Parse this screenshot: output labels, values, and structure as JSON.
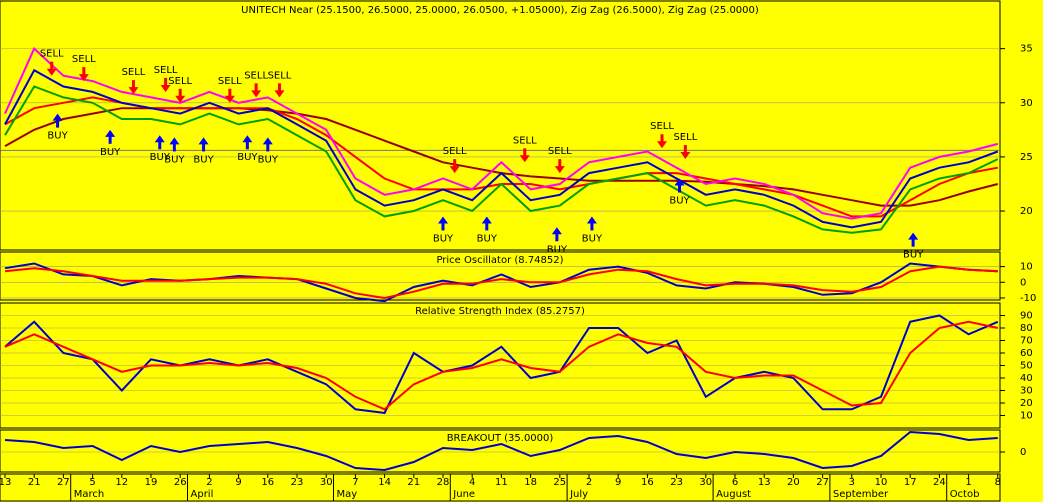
{
  "chart_data": [
    {
      "type": "line",
      "title": "UNITECH Near (25.1500, 26.5000, 25.0000, 26.0500, +1.05000), Zig Zag (26.5000), Zig Zag (25.0000)",
      "categories": [
        "13",
        "21",
        "27",
        "5",
        "12",
        "19",
        "26",
        "2",
        "9",
        "16",
        "23",
        "30",
        "7",
        "14",
        "21",
        "28",
        "4",
        "11",
        "18",
        "25",
        "2",
        "9",
        "16",
        "23",
        "30",
        "6",
        "13",
        "20",
        "27",
        "3",
        "10",
        "17",
        "24",
        "1",
        "8"
      ],
      "months": [
        {
          "value": 3,
          "label": "March"
        },
        {
          "value": 7,
          "label": "April"
        },
        {
          "value": 12,
          "label": "May"
        },
        {
          "value": 16,
          "label": "June"
        },
        {
          "value": 20,
          "label": "July"
        },
        {
          "value": 25,
          "label": "August"
        },
        {
          "value": 29,
          "label": "September"
        },
        {
          "value": 33,
          "label": "Octob"
        }
      ],
      "ylim": [
        16.4,
        39.4
      ],
      "yticks": [
        20,
        25,
        30,
        35
      ],
      "hline": 25.6,
      "series": [
        {
          "color": "#990000",
          "values": [
            26,
            27.5,
            28.5,
            29,
            29.5,
            29.5,
            29.5,
            29.5,
            29.5,
            29.3,
            29,
            28.5,
            27.5,
            26.5,
            25.5,
            24.5,
            24,
            23.5,
            23.2,
            23,
            22.8,
            22.8,
            22.8,
            22.8,
            22.7,
            22.5,
            22.3,
            22,
            21.5,
            21,
            20.5,
            20.5,
            21,
            21.8,
            22.5
          ]
        },
        {
          "color": "#ff0000",
          "values": [
            28,
            29.5,
            30,
            30.5,
            30,
            29.5,
            29.5,
            29.5,
            29.5,
            29.5,
            28.5,
            27,
            25,
            23,
            22,
            22,
            22,
            22.5,
            22.5,
            22,
            22.5,
            23,
            23.5,
            23.5,
            23,
            22.5,
            22,
            21.5,
            20.5,
            19.5,
            19.5,
            21,
            22.5,
            23.5,
            24
          ]
        },
        {
          "color": "#00a000",
          "values": [
            27,
            31.5,
            30.5,
            30,
            28.5,
            28.5,
            28,
            29,
            28,
            28.5,
            27,
            25.5,
            21,
            19.5,
            20,
            21,
            20,
            22.5,
            20,
            20.5,
            22.5,
            23,
            23.5,
            22,
            20.5,
            21,
            20.5,
            19.5,
            18.3,
            18,
            18.3,
            22,
            23,
            23.5,
            24.8
          ]
        },
        {
          "color": "#ff00ff",
          "values": [
            29,
            35,
            32.5,
            32,
            31,
            30.5,
            30,
            31,
            30,
            30.5,
            29,
            27.5,
            23,
            21.5,
            22,
            23,
            22,
            24.5,
            22,
            22.5,
            24.5,
            25,
            25.5,
            24,
            22.5,
            23,
            22.5,
            21.5,
            19.8,
            19.3,
            19.8,
            24,
            25,
            25.5,
            26.2
          ]
        },
        {
          "color": "#0000cc",
          "values": [
            28,
            33,
            31.5,
            31,
            30,
            29.5,
            29,
            30,
            29,
            29.5,
            28,
            26.5,
            22,
            20.5,
            21,
            22,
            21,
            23.5,
            21,
            21.5,
            23.5,
            24,
            24.5,
            23,
            21.5,
            22,
            21.5,
            20.5,
            19,
            18.5,
            19,
            23,
            24,
            24.5,
            25.5
          ]
        }
      ],
      "signals": [
        {
          "label": "SELL",
          "x": 1.6,
          "value": 32.5
        },
        {
          "label": "SELL",
          "x": 2.7,
          "value": 32
        },
        {
          "label": "SELL",
          "x": 4.4,
          "value": 30.8
        },
        {
          "label": "SELL",
          "x": 5.5,
          "value": 31
        },
        {
          "label": "SELL",
          "x": 6.0,
          "value": 30
        },
        {
          "label": "SELL",
          "x": 7.7,
          "value": 30
        },
        {
          "label": "SELL",
          "x": 8.6,
          "value": 30.5
        },
        {
          "label": "SELL",
          "x": 9.4,
          "value": 30.5
        },
        {
          "label": "SELL",
          "x": 15.4,
          "value": 23.5
        },
        {
          "label": "SELL",
          "x": 17.8,
          "value": 24.5
        },
        {
          "label": "SELL",
          "x": 19.0,
          "value": 23.5
        },
        {
          "label": "SELL",
          "x": 22.5,
          "value": 25.8
        },
        {
          "label": "SELL",
          "x": 23.3,
          "value": 24.8
        },
        {
          "label": "BUY",
          "x": 1.8,
          "value": 29
        },
        {
          "label": "BUY",
          "x": 3.6,
          "value": 27.5
        },
        {
          "label": "BUY",
          "x": 5.3,
          "value": 27
        },
        {
          "label": "BUY",
          "x": 5.8,
          "value": 26.8
        },
        {
          "label": "BUY",
          "x": 6.8,
          "value": 26.8
        },
        {
          "label": "BUY",
          "x": 8.3,
          "value": 27
        },
        {
          "label": "BUY",
          "x": 9.0,
          "value": 26.8
        },
        {
          "label": "BUY",
          "x": 15.0,
          "value": 19.5
        },
        {
          "label": "BUY",
          "x": 16.5,
          "value": 19.5
        },
        {
          "label": "BUY",
          "x": 18.9,
          "value": 18.5
        },
        {
          "label": "BUY",
          "x": 20.1,
          "value": 19.5
        },
        {
          "label": "BUY",
          "x": 23.1,
          "value": 23
        },
        {
          "label": "BUY",
          "x": 31.1,
          "value": 18
        }
      ]
    },
    {
      "type": "line",
      "title": "Price Oscillator (8.74852)",
      "ylim": [
        -11.3,
        19.3
      ],
      "yticks": [
        10,
        0,
        -10
      ],
      "series": [
        {
          "color": "#0000cc",
          "values": [
            9,
            12,
            5,
            4,
            -2,
            2,
            1,
            2,
            4,
            3,
            2,
            -4,
            -10,
            -12,
            -3,
            1,
            -2,
            5,
            -3,
            0,
            8,
            10,
            6,
            -2,
            -4,
            0,
            -1,
            -3,
            -8,
            -7,
            0,
            12,
            10,
            8,
            7
          ]
        },
        {
          "color": "#ff0000",
          "values": [
            7,
            9,
            7,
            4,
            1,
            1,
            1,
            2,
            3,
            3,
            2,
            -1,
            -7,
            -10,
            -6,
            -1,
            -1,
            2,
            0,
            0,
            5,
            8,
            7,
            2,
            -2,
            -1,
            -1,
            -2,
            -5,
            -6,
            -3,
            7,
            10,
            8,
            7
          ]
        }
      ]
    },
    {
      "type": "line",
      "title": "Relative Strength Index (85.2757)",
      "ylim": [
        0,
        100
      ],
      "yticks": [
        90,
        80,
        70,
        60,
        50,
        40,
        30,
        20,
        10
      ],
      "series": [
        {
          "color": "#0000cc",
          "values": [
            65,
            85,
            60,
            55,
            30,
            55,
            50,
            55,
            50,
            55,
            45,
            35,
            15,
            12,
            60,
            45,
            50,
            65,
            40,
            45,
            80,
            80,
            60,
            70,
            25,
            40,
            45,
            40,
            15,
            15,
            25,
            85,
            90,
            75,
            85
          ]
        },
        {
          "color": "#ff0000",
          "values": [
            65,
            75,
            65,
            55,
            45,
            50,
            50,
            52,
            50,
            52,
            48,
            40,
            25,
            15,
            35,
            45,
            48,
            55,
            48,
            45,
            65,
            75,
            68,
            65,
            45,
            40,
            42,
            42,
            30,
            18,
            20,
            60,
            80,
            85,
            80
          ]
        }
      ]
    },
    {
      "type": "line",
      "title": "BREAKOUT (35.0000)",
      "ylim": [
        -10,
        11
      ],
      "yticks": [
        0
      ],
      "series": [
        {
          "color": "#0000cc",
          "values": [
            6,
            5,
            2,
            3,
            -4,
            3,
            0,
            3,
            4,
            5,
            2,
            -2,
            -8,
            -9,
            -5,
            2,
            1,
            4,
            -2,
            1,
            7,
            8,
            5,
            -1,
            -3,
            0,
            -1,
            -3,
            -8,
            -7,
            -2,
            10,
            9,
            6,
            7
          ]
        }
      ]
    }
  ]
}
